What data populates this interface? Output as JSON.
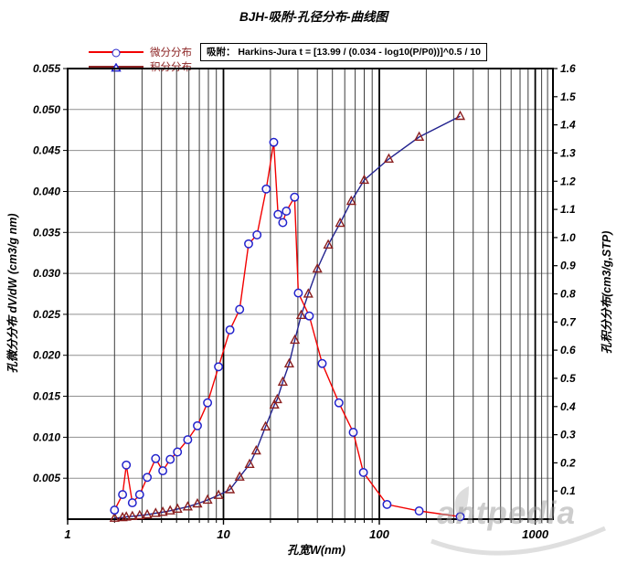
{
  "title": "BJH-吸附-孔径分布-曲线图",
  "legend": {
    "series1_label": "微分分布",
    "series1_note": "吸附：  Harkins-Jura  t = [13.99 / (0.034 - log10(P/P0))]^0.5 / 10",
    "series2_label": "积分分布"
  },
  "watermark": "antpedia",
  "colors": {
    "series1_line": "#f20000",
    "series1_marker": "#2222cc",
    "series2_line": "#23238f",
    "series2_marker": "#8b1f1f",
    "legend2_line": "#8b2525",
    "legend2_marker": "#2222cc",
    "hgrid": "#8f8f8f",
    "vgrid_minor": "#3c3c3c",
    "vgrid_major": "#000000",
    "border": "#000000"
  },
  "chart_data": {
    "type": "line",
    "title": "BJH-吸附-孔径分布-曲线图",
    "xlabel": "孔宽W(nm)",
    "x_scale": "log",
    "x_range": [
      1,
      1300
    ],
    "x_ticks": [
      1,
      10,
      100,
      1000
    ],
    "grid": "on",
    "legend_position": "top-left",
    "left_axis": {
      "label": "孔微分分布 dV/dW (cm3/g nm)",
      "range": [
        0,
        0.055
      ],
      "ticks": [
        0.005,
        0.01,
        0.015,
        0.02,
        0.025,
        0.03,
        0.035,
        0.04,
        0.045,
        0.05,
        0.055
      ]
    },
    "right_axis": {
      "label": "孔积分分布(cm3/g,STP)",
      "range": [
        0,
        1.6
      ],
      "ticks": [
        0.1,
        0.2,
        0.3,
        0.4,
        0.5,
        0.6,
        0.7,
        0.8,
        0.9,
        1.0,
        1.1,
        1.2,
        1.3,
        1.4,
        1.5,
        1.6
      ]
    },
    "series": [
      {
        "name": "微分分布",
        "axis": "left",
        "color": "#f20000",
        "marker": "circle",
        "marker_color": "#2222cc",
        "points": [
          [
            2.0,
            0.0011
          ],
          [
            2.25,
            0.003
          ],
          [
            2.38,
            0.0066
          ],
          [
            2.6,
            0.002
          ],
          [
            2.9,
            0.003
          ],
          [
            3.24,
            0.0051
          ],
          [
            3.67,
            0.0074
          ],
          [
            4.08,
            0.0059
          ],
          [
            4.55,
            0.0073
          ],
          [
            5.07,
            0.0082
          ],
          [
            5.9,
            0.0097
          ],
          [
            6.8,
            0.0114
          ],
          [
            7.9,
            0.0142
          ],
          [
            9.3,
            0.0186
          ],
          [
            11.0,
            0.0231
          ],
          [
            12.7,
            0.0256
          ],
          [
            14.5,
            0.0336
          ],
          [
            16.4,
            0.0347
          ],
          [
            18.8,
            0.0403
          ],
          [
            21.0,
            0.046
          ],
          [
            22.4,
            0.0372
          ],
          [
            24.0,
            0.0362
          ],
          [
            25.3,
            0.0376
          ],
          [
            28.6,
            0.0393
          ],
          [
            30.2,
            0.0276
          ],
          [
            35.5,
            0.0248
          ],
          [
            43,
            0.019
          ],
          [
            55,
            0.0142
          ],
          [
            68,
            0.0106
          ],
          [
            79,
            0.0057
          ],
          [
            112,
            0.0018
          ],
          [
            180,
            0.001
          ],
          [
            330,
            0.0003
          ]
        ]
      },
      {
        "name": "积分分布",
        "axis": "right",
        "color": "#23238f",
        "marker": "triangle",
        "marker_color": "#8b1f1f",
        "points": [
          [
            2.0,
            0.004
          ],
          [
            2.25,
            0.006
          ],
          [
            2.38,
            0.008
          ],
          [
            2.6,
            0.01
          ],
          [
            2.9,
            0.013
          ],
          [
            3.24,
            0.016
          ],
          [
            3.67,
            0.021
          ],
          [
            4.08,
            0.025
          ],
          [
            4.55,
            0.03
          ],
          [
            5.07,
            0.036
          ],
          [
            5.9,
            0.044
          ],
          [
            6.8,
            0.055
          ],
          [
            7.9,
            0.068
          ],
          [
            9.3,
            0.085
          ],
          [
            11.0,
            0.105
          ],
          [
            12.7,
            0.15
          ],
          [
            14.7,
            0.195
          ],
          [
            16.2,
            0.243
          ],
          [
            18.6,
            0.328
          ],
          [
            21.2,
            0.406
          ],
          [
            22.1,
            0.425
          ],
          [
            24.0,
            0.487
          ],
          [
            26.4,
            0.552
          ],
          [
            28.7,
            0.636
          ],
          [
            31.5,
            0.724
          ],
          [
            35.0,
            0.8
          ],
          [
            40,
            0.889
          ],
          [
            47,
            0.974
          ],
          [
            56,
            1.051
          ],
          [
            66,
            1.129
          ],
          [
            80,
            1.204
          ],
          [
            115,
            1.279
          ],
          [
            180,
            1.357
          ],
          [
            330,
            1.431
          ]
        ]
      }
    ]
  }
}
